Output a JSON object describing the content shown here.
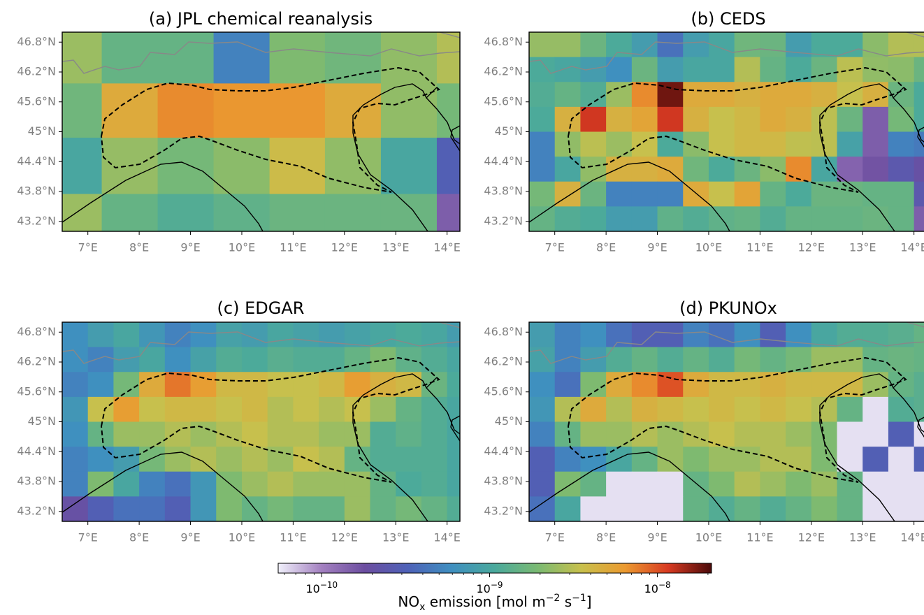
{
  "chart_data": [
    {
      "type": "heatmap",
      "title": "(a) JPL chemical reanalysis",
      "xlim": [
        6.5,
        14.25
      ],
      "ylim": [
        43.0,
        47.0
      ],
      "xticks": [
        {
          "value": 7,
          "label": "7°E"
        },
        {
          "value": 8,
          "label": "8°E"
        },
        {
          "value": 9,
          "label": "9°E"
        },
        {
          "value": 10,
          "label": "10°E"
        },
        {
          "value": 11,
          "label": "11°E"
        },
        {
          "value": 12,
          "label": "12°E"
        },
        {
          "value": 13,
          "label": "13°E"
        },
        {
          "value": 14,
          "label": "14°E"
        }
      ],
      "yticks": [
        {
          "value": 46.8,
          "label": "46.8°N"
        },
        {
          "value": 46.2,
          "label": "46.2°N"
        },
        {
          "value": 45.6,
          "label": "45.6°N"
        },
        {
          "value": 45,
          "label": "45°N"
        },
        {
          "value": 44.4,
          "label": "44.4°N"
        },
        {
          "value": 43.8,
          "label": "43.8°N"
        },
        {
          "value": 43.2,
          "label": "43.2°N"
        }
      ],
      "lon_edges": [
        6.5,
        7.27,
        8.36,
        9.45,
        10.54,
        11.62,
        12.71,
        13.8,
        14.89
      ],
      "lat_edges": [
        47.0,
        45.97,
        44.88,
        43.75,
        43.0
      ],
      "values": [
        [
          2.5e-09,
          1.5e-09,
          1.5e-09,
          5e-10,
          2e-09,
          1.7e-09,
          2.3e-09,
          3e-09
        ],
        [
          1.7e-09,
          5e-09,
          7e-09,
          6.5e-09,
          6.5e-09,
          5e-09,
          2.3e-09,
          1.8e-09
        ],
        [
          1e-09,
          2.4e-09,
          1.8e-09,
          2.2e-09,
          3.8e-09,
          2.3e-09,
          1e-09,
          3e-10
        ],
        [
          2.5e-09,
          1.5e-09,
          1.2e-09,
          1.4e-09,
          1.6e-09,
          1.6e-09,
          1.6e-09,
          1.5e-10
        ]
      ]
    },
    {
      "type": "heatmap",
      "title": "(b) CEDS",
      "xlim": [
        6.5,
        14.25
      ],
      "ylim": [
        43.0,
        47.0
      ],
      "xticks": [
        {
          "value": 7,
          "label": "7°E"
        },
        {
          "value": 8,
          "label": "8°E"
        },
        {
          "value": 9,
          "label": "9°E"
        },
        {
          "value": 10,
          "label": "10°E"
        },
        {
          "value": 11,
          "label": "11°E"
        },
        {
          "value": 12,
          "label": "12°E"
        },
        {
          "value": 13,
          "label": "13°E"
        },
        {
          "value": 14,
          "label": "14°E"
        }
      ],
      "yticks": [
        {
          "value": 46.8,
          "label": "46.8°N"
        },
        {
          "value": 46.2,
          "label": "46.2°N"
        },
        {
          "value": 45.6,
          "label": "45.6°N"
        },
        {
          "value": 45,
          "label": "45°N"
        },
        {
          "value": 44.4,
          "label": "44.4°N"
        },
        {
          "value": 43.8,
          "label": "43.8°N"
        },
        {
          "value": 43.2,
          "label": "43.2°N"
        }
      ],
      "lon_edges": [
        6.5,
        7,
        7.5,
        8,
        8.5,
        9,
        9.5,
        10,
        10.5,
        11,
        11.5,
        12,
        12.5,
        13,
        13.5,
        14,
        14.5
      ],
      "lat_edges": [
        47,
        46.5,
        46,
        45.5,
        45,
        44.5,
        44,
        43.5,
        43
      ],
      "values": [
        [
          2.4e-09,
          2.4e-09,
          1.6e-09,
          1.1e-09,
          8e-10,
          4e-10,
          8e-10,
          1e-09,
          1.7e-09,
          1.6e-09,
          8e-10,
          1.1e-09,
          1.1e-09,
          2.2e-09,
          3e-09,
          3e-09
        ],
        [
          1.1e-09,
          1e-09,
          8e-10,
          6e-10,
          1.6e-09,
          8e-10,
          1e-09,
          1e-09,
          3e-09,
          1.5e-09,
          1.1e-09,
          1.6e-09,
          3.2e-09,
          2.3e-09,
          2.2e-09,
          1.6e-09
        ],
        [
          1.2e-09,
          1.5e-09,
          1.2e-09,
          2.5e-09,
          7e-09,
          1.8e-08,
          5e-09,
          5e-09,
          4.5e-09,
          5e-09,
          5e-09,
          4.5e-09,
          3.5e-09,
          4.5e-09,
          1.6e-09,
          1.1e-09
        ],
        [
          1.1e-09,
          4.5e-09,
          1.2e-08,
          4.5e-09,
          5.5e-09,
          1.2e-08,
          4.5e-09,
          3.5e-09,
          4e-09,
          5e-09,
          4.5e-09,
          3.2e-09,
          1.6e-09,
          1.5e-10,
          1.8e-09,
          1.1e-09
        ],
        [
          5e-10,
          2.3e-09,
          3.2e-09,
          2.5e-09,
          3.5e-09,
          1.1e-09,
          2.2e-09,
          3.5e-09,
          4e-09,
          4e-09,
          3.3e-09,
          3.2e-09,
          9e-10,
          1.5e-10,
          5e-10,
          4.5e-10
        ],
        [
          5e-10,
          1e-09,
          2.3e-09,
          4.5e-09,
          4.5e-09,
          5e-09,
          1.7e-09,
          1.1e-09,
          1.6e-09,
          2.2e-09,
          7e-09,
          1e-09,
          1.4e-10,
          1.7e-10,
          2.5e-10,
          2e-10
        ],
        [
          1.8e-09,
          4.5e-09,
          1.6e-09,
          5e-10,
          5e-10,
          5e-10,
          5e-09,
          3.5e-09,
          5.5e-09,
          1.5e-09,
          1.1e-09,
          1.6e-09,
          1.6e-09,
          1.5e-09,
          1.5e-09,
          2.5e-10
        ],
        [
          1.5e-09,
          1.2e-09,
          1.1e-09,
          8e-10,
          8e-10,
          1.4e-09,
          1.2e-09,
          1.4e-09,
          1.5e-09,
          1.2e-09,
          1.5e-09,
          1.5e-09,
          1.5e-09,
          1.6e-09,
          1.5e-09,
          1.5e-10
        ]
      ]
    },
    {
      "type": "heatmap",
      "title": "(c) EDGAR",
      "xlim": [
        6.5,
        14.25
      ],
      "ylim": [
        43.0,
        47.0
      ],
      "xticks": [
        {
          "value": 7,
          "label": "7°E"
        },
        {
          "value": 8,
          "label": "8°E"
        },
        {
          "value": 9,
          "label": "9°E"
        },
        {
          "value": 10,
          "label": "10°E"
        },
        {
          "value": 11,
          "label": "11°E"
        },
        {
          "value": 12,
          "label": "12°E"
        },
        {
          "value": 13,
          "label": "13°E"
        },
        {
          "value": 14,
          "label": "14°E"
        }
      ],
      "yticks": [
        {
          "value": 46.8,
          "label": "46.8°N"
        },
        {
          "value": 46.2,
          "label": "46.2°N"
        },
        {
          "value": 45.6,
          "label": "45.6°N"
        },
        {
          "value": 45,
          "label": "45°N"
        },
        {
          "value": 44.4,
          "label": "44.4°N"
        },
        {
          "value": 43.8,
          "label": "43.8°N"
        },
        {
          "value": 43.2,
          "label": "43.2°N"
        }
      ],
      "lon_edges": [
        6.5,
        7,
        7.5,
        8,
        8.5,
        9,
        9.5,
        10,
        10.5,
        11,
        11.5,
        12,
        12.5,
        13,
        13.5,
        14,
        14.5
      ],
      "lat_edges": [
        47,
        46.5,
        46,
        45.5,
        45,
        44.5,
        44,
        43.5,
        43
      ],
      "values": [
        [
          6e-10,
          8e-10,
          1e-09,
          7e-10,
          5e-10,
          6e-10,
          9e-10,
          8e-10,
          1e-09,
          9e-10,
          8e-10,
          9e-10,
          1e-09,
          1.1e-09,
          1e-09,
          8e-10
        ],
        [
          6e-10,
          5e-10,
          8e-10,
          1e-09,
          6e-10,
          9e-10,
          1.2e-09,
          1.1e-09,
          1.3e-09,
          1.2e-09,
          1.2e-09,
          1.5e-09,
          2e-09,
          1.4e-09,
          1.2e-09,
          1e-09
        ],
        [
          5e-10,
          6e-10,
          1.8e-09,
          5e-09,
          8e-09,
          6e-09,
          4e-09,
          4e-09,
          3.5e-09,
          3.5e-09,
          4e-09,
          6e-09,
          4.5e-09,
          4e-09,
          1.6e-09,
          1.1e-09
        ],
        [
          7e-10,
          3.5e-09,
          6e-09,
          3.5e-09,
          4e-09,
          4e-09,
          3.5e-09,
          4e-09,
          3e-09,
          3.5e-09,
          3e-09,
          3.5e-09,
          2.5e-09,
          1.5e-09,
          1.2e-09,
          1e-09
        ],
        [
          6e-10,
          1.5e-09,
          2.5e-09,
          2.5e-09,
          3e-09,
          2.5e-09,
          3e-09,
          3.5e-09,
          3e-09,
          3e-09,
          2.5e-09,
          2.5e-09,
          1.2e-09,
          1.4e-09,
          1.2e-09,
          1e-09
        ],
        [
          5e-10,
          6e-10,
          8e-10,
          1.8e-09,
          2.5e-09,
          3e-09,
          2.5e-09,
          3e-09,
          2.5e-09,
          3.5e-09,
          3e-09,
          1.5e-09,
          1.2e-09,
          1.2e-09,
          1.2e-09,
          1e-09
        ],
        [
          5e-10,
          2e-09,
          1e-09,
          5e-10,
          4e-10,
          7e-10,
          2e-09,
          2.5e-09,
          3e-09,
          2.5e-09,
          2.5e-09,
          2.5e-09,
          1.5e-09,
          1.1e-09,
          1.2e-09,
          1e-09
        ],
        [
          2e-10,
          3e-10,
          4e-10,
          4e-10,
          3e-10,
          7e-10,
          2e-09,
          1.5e-09,
          1.8e-09,
          1.5e-09,
          1.5e-09,
          2.5e-09,
          1.5e-09,
          1.8e-09,
          1.5e-09,
          1.2e-09
        ]
      ]
    },
    {
      "type": "heatmap",
      "title": "(d) PKUNOx",
      "xlim": [
        6.5,
        14.25
      ],
      "ylim": [
        43.0,
        47.0
      ],
      "xticks": [
        {
          "value": 7,
          "label": "7°E"
        },
        {
          "value": 8,
          "label": "8°E"
        },
        {
          "value": 9,
          "label": "9°E"
        },
        {
          "value": 10,
          "label": "10°E"
        },
        {
          "value": 11,
          "label": "11°E"
        },
        {
          "value": 12,
          "label": "12°E"
        },
        {
          "value": 13,
          "label": "13°E"
        },
        {
          "value": 14,
          "label": "14°E"
        }
      ],
      "yticks": [
        {
          "value": 46.8,
          "label": "46.8°N"
        },
        {
          "value": 46.2,
          "label": "46.2°N"
        },
        {
          "value": 45.6,
          "label": "45.6°N"
        },
        {
          "value": 45,
          "label": "45°N"
        },
        {
          "value": 44.4,
          "label": "44.4°N"
        },
        {
          "value": 43.8,
          "label": "43.8°N"
        },
        {
          "value": 43.2,
          "label": "43.2°N"
        }
      ],
      "lon_edges": [
        6.5,
        7,
        7.5,
        8,
        8.5,
        9,
        9.5,
        10,
        10.5,
        11,
        11.5,
        12,
        12.5,
        13,
        13.5,
        14,
        14.5
      ],
      "lat_edges": [
        47,
        46.5,
        46,
        45.5,
        45,
        44.5,
        44,
        43.5,
        43
      ],
      "values": [
        [
          8e-10,
          5e-10,
          6e-10,
          4e-10,
          3e-10,
          3e-10,
          5e-10,
          4e-10,
          6e-10,
          3e-10,
          6e-10,
          1e-09,
          1.2e-09,
          1.2e-09,
          1.3e-09,
          1.5e-09
        ],
        [
          9e-10,
          5e-10,
          8e-10,
          1.2e-09,
          1.5e-09,
          1.2e-09,
          1.5e-09,
          1.2e-09,
          1.8e-09,
          1.5e-09,
          1.8e-09,
          2.5e-09,
          2.5e-09,
          1.5e-09,
          1.6e-09,
          1.5e-09
        ],
        [
          6e-10,
          4e-10,
          2e-09,
          5e-09,
          7e-09,
          1e-08,
          5e-09,
          4e-09,
          4e-09,
          4.5e-09,
          4e-09,
          4e-09,
          4e-09,
          2.5e-09,
          1.5e-09,
          1.3e-09
        ],
        [
          7e-10,
          3e-09,
          5e-09,
          3e-09,
          4.5e-09,
          4e-09,
          3.5e-09,
          4e-09,
          3.5e-09,
          4e-09,
          3.5e-09,
          3e-09,
          1.5e-09,
          6e-11,
          1.2e-09,
          1.3e-09
        ],
        [
          5e-10,
          1.5e-09,
          2.5e-09,
          2.5e-09,
          3e-09,
          2.5e-09,
          3e-09,
          3.5e-09,
          3e-09,
          3e-09,
          2.5e-09,
          2e-09,
          6e-11,
          6e-11,
          3e-10,
          6e-11
        ],
        [
          3e-10,
          5e-10,
          6e-10,
          1e-09,
          1.5e-09,
          2.5e-09,
          2e-09,
          2.5e-09,
          2.5e-09,
          3e-09,
          3e-09,
          2e-09,
          6e-11,
          3e-10,
          6e-11,
          3e-10
        ],
        [
          3e-10,
          2e-09,
          1.5e-09,
          6e-11,
          6e-11,
          6e-11,
          1.5e-09,
          2e-09,
          3e-09,
          2.5e-09,
          2e-09,
          2.5e-09,
          1.5e-09,
          6e-11,
          6e-11,
          6e-11
        ],
        [
          4e-10,
          1e-09,
          6e-11,
          6e-11,
          6e-11,
          6e-11,
          1.5e-09,
          1.2e-09,
          1.5e-09,
          1.2e-09,
          1.5e-09,
          2e-09,
          1.5e-09,
          6e-11,
          6e-11,
          6e-11
        ]
      ]
    }
  ],
  "colorbar": {
    "label": [
      "NO",
      "x",
      " emission [mol m",
      "−2",
      " s",
      "−1",
      "]"
    ],
    "log_scale": true,
    "clim": [
      5.5e-11,
      2.1e-08
    ],
    "colormap": [
      "#f0f0fb",
      "#a380c0",
      "#6c4ea0",
      "#4e62b8",
      "#3f8fc0",
      "#4aa99c",
      "#7bba72",
      "#c8c04c",
      "#eb9a30",
      "#d83a22",
      "#4a0a0a"
    ],
    "ticks": [
      {
        "value": 1e-10,
        "label": "10",
        "exponent": "−10"
      },
      {
        "value": 1e-09,
        "label": "10",
        "exponent": "−9"
      },
      {
        "value": 1e-08,
        "label": "10",
        "exponent": "−8"
      }
    ],
    "minor_ticks": [
      6e-11,
      7e-11,
      8e-11,
      9e-11,
      2e-10,
      3e-10,
      4e-10,
      5e-10,
      6e-10,
      7e-10,
      8e-10,
      9e-10,
      2e-09,
      3e-09,
      4e-09,
      5e-09,
      6e-09,
      7e-09,
      8e-09,
      9e-09,
      2e-08
    ]
  }
}
